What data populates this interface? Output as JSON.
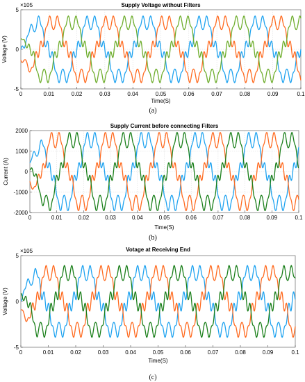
{
  "colors": {
    "phase_a": "#1fa3f0",
    "phase_b": "#ff6a1f",
    "phase_c_a": "#6fae2e",
    "phase_c_bc": "#1a7f1a"
  },
  "chart_data": [
    {
      "type": "line",
      "panel": "(a)",
      "title": "Supply Voltage without Filters",
      "xlabel": "Time(S)",
      "ylabel": "Voltage (V)",
      "exponent": "×10^5",
      "xlim": [
        0,
        0.1
      ],
      "ylim": [
        -5,
        5
      ],
      "xticks": [
        "0",
        "0.01",
        "0.02",
        "0.03",
        "0.04",
        "0.05",
        "0.06",
        "0.07",
        "0.08",
        "0.09",
        "0.1"
      ],
      "yticks": [
        "-5",
        "0",
        "5"
      ],
      "grid": true,
      "frequency_hz": 50,
      "series": [
        {
          "color": "#1fa3f0",
          "amplitude": 3.8,
          "phase_deg": 0,
          "harmonic_ripple": 0.3
        },
        {
          "color": "#ff6a1f",
          "amplitude": 3.8,
          "phase_deg": -120,
          "harmonic_ripple": 0.3
        },
        {
          "color": "#6fae2e",
          "amplitude": 3.8,
          "phase_deg": 120,
          "harmonic_ripple": 0.3
        }
      ]
    },
    {
      "type": "line",
      "panel": "(b)",
      "title": "Supply Current before connecting Filters",
      "xlabel": "Time(S)",
      "ylabel": "Current (A)",
      "exponent": "",
      "xlim": [
        0,
        0.1
      ],
      "ylim": [
        -2000,
        2000
      ],
      "xticks": [
        "0",
        "0.01",
        "0.02",
        "0.03",
        "0.04",
        "0.05",
        "0.06",
        "0.07",
        "0.08",
        "0.09",
        "0.1"
      ],
      "yticks": [
        "-2000",
        "-1000",
        "0",
        "1000",
        "2000"
      ],
      "grid": true,
      "frequency_hz": 50,
      "series": [
        {
          "color": "#1fa3f0",
          "amplitude": 1750,
          "phase_deg": 40,
          "harmonic_ripple": 0.25
        },
        {
          "color": "#ff6a1f",
          "amplitude": 1750,
          "phase_deg": -80,
          "harmonic_ripple": 0.25
        },
        {
          "color": "#1a7f1a",
          "amplitude": 1750,
          "phase_deg": 160,
          "harmonic_ripple": 0.25
        }
      ]
    },
    {
      "type": "line",
      "panel": "(c)",
      "title": "Votage at Receiving End",
      "xlabel": "Time(S)",
      "ylabel": "Voltage (V)",
      "exponent": "×10^5",
      "xlim": [
        0,
        0.1
      ],
      "ylim": [
        -5,
        5
      ],
      "xticks": [
        "0",
        "0.01",
        "0.02",
        "0.03",
        "0.04",
        "0.05",
        "0.06",
        "0.07",
        "0.08",
        "0.09",
        "0.1"
      ],
      "yticks": [
        "-5",
        "0",
        "5"
      ],
      "grid": false,
      "frequency_hz": 50,
      "series": [
        {
          "color": "#1fa3f0",
          "amplitude": 3.5,
          "phase_deg": 20,
          "harmonic_ripple": 0.35
        },
        {
          "color": "#ff6a1f",
          "amplitude": 3.5,
          "phase_deg": -100,
          "harmonic_ripple": 0.35
        },
        {
          "color": "#1a7f1a",
          "amplitude": 3.5,
          "phase_deg": 140,
          "harmonic_ripple": 0.35
        }
      ]
    }
  ]
}
